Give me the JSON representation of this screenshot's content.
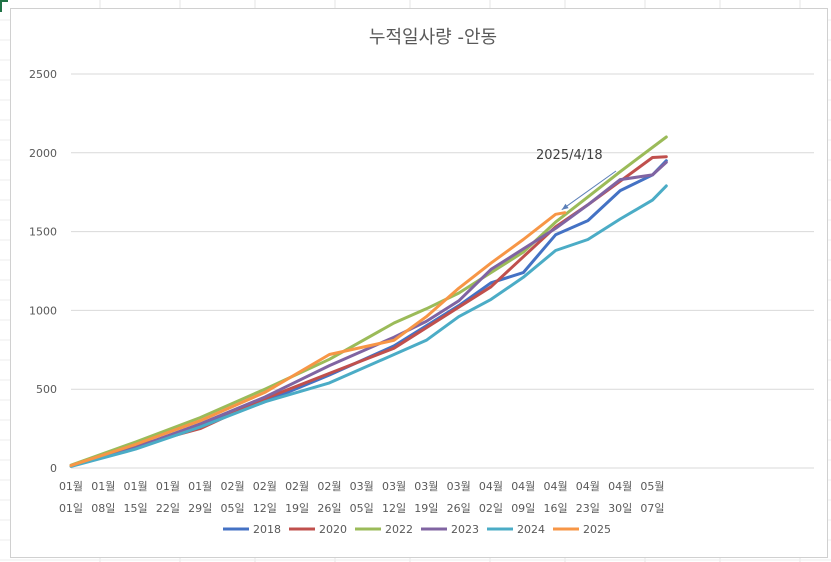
{
  "chart_data": {
    "type": "line",
    "title": "누적일사량 -안동",
    "xlabel": "",
    "ylabel": "",
    "ylim": [
      0,
      2500
    ],
    "yticks": [
      0,
      500,
      1000,
      1500,
      2000,
      2500
    ],
    "grid": true,
    "legend_position": "bottom",
    "x_day_range": [
      1,
      162
    ],
    "xticks": [
      {
        "day": 1,
        "month": "01월",
        "day_label": "01일"
      },
      {
        "day": 8,
        "month": "01월",
        "day_label": "08일"
      },
      {
        "day": 15,
        "month": "01월",
        "day_label": "15일"
      },
      {
        "day": 22,
        "month": "01월",
        "day_label": "22일"
      },
      {
        "day": 29,
        "month": "01월",
        "day_label": "29일"
      },
      {
        "day": 36,
        "month": "02월",
        "day_label": "05일"
      },
      {
        "day": 43,
        "month": "02월",
        "day_label": "12일"
      },
      {
        "day": 50,
        "month": "02월",
        "day_label": "19일"
      },
      {
        "day": 57,
        "month": "02월",
        "day_label": "26일"
      },
      {
        "day": 64,
        "month": "03월",
        "day_label": "05일"
      },
      {
        "day": 71,
        "month": "03월",
        "day_label": "12일"
      },
      {
        "day": 78,
        "month": "03월",
        "day_label": "19일"
      },
      {
        "day": 85,
        "month": "03월",
        "day_label": "26일"
      },
      {
        "day": 92,
        "month": "04월",
        "day_label": "02일"
      },
      {
        "day": 99,
        "month": "04월",
        "day_label": "09일"
      },
      {
        "day": 106,
        "month": "04월",
        "day_label": "16일"
      },
      {
        "day": 113,
        "month": "04월",
        "day_label": "23일"
      },
      {
        "day": 120,
        "month": "04월",
        "day_label": "30일"
      },
      {
        "day": 127,
        "month": "05월",
        "day_label": "07일"
      }
    ],
    "series": [
      {
        "name": "2018",
        "color": "#4472C4",
        "points": [
          [
            1,
            15
          ],
          [
            15,
            125
          ],
          [
            29,
            270
          ],
          [
            43,
            420
          ],
          [
            57,
            590
          ],
          [
            71,
            775
          ],
          [
            85,
            1030
          ],
          [
            92,
            1175
          ],
          [
            99,
            1240
          ],
          [
            106,
            1480
          ],
          [
            113,
            1570
          ],
          [
            120,
            1760
          ],
          [
            127,
            1860
          ],
          [
            130,
            1950
          ]
        ]
      },
      {
        "name": "2020",
        "color": "#C0504D",
        "points": [
          [
            1,
            12
          ],
          [
            15,
            140
          ],
          [
            29,
            250
          ],
          [
            43,
            440
          ],
          [
            57,
            600
          ],
          [
            71,
            760
          ],
          [
            85,
            1020
          ],
          [
            92,
            1150
          ],
          [
            99,
            1340
          ],
          [
            106,
            1530
          ],
          [
            113,
            1670
          ],
          [
            120,
            1820
          ],
          [
            127,
            1970
          ],
          [
            130,
            1975
          ]
        ]
      },
      {
        "name": "2022",
        "color": "#9BBB59",
        "points": [
          [
            1,
            18
          ],
          [
            15,
            165
          ],
          [
            29,
            320
          ],
          [
            43,
            500
          ],
          [
            57,
            690
          ],
          [
            71,
            920
          ],
          [
            78,
            1010
          ],
          [
            85,
            1110
          ],
          [
            92,
            1240
          ],
          [
            99,
            1370
          ],
          [
            106,
            1560
          ],
          [
            113,
            1720
          ],
          [
            120,
            1880
          ],
          [
            130,
            2100
          ]
        ]
      },
      {
        "name": "2023",
        "color": "#8064A2",
        "points": [
          [
            1,
            14
          ],
          [
            15,
            130
          ],
          [
            29,
            280
          ],
          [
            43,
            450
          ],
          [
            57,
            650
          ],
          [
            71,
            830
          ],
          [
            78,
            930
          ],
          [
            85,
            1060
          ],
          [
            92,
            1260
          ],
          [
            99,
            1390
          ],
          [
            106,
            1520
          ],
          [
            113,
            1670
          ],
          [
            120,
            1830
          ],
          [
            127,
            1860
          ],
          [
            130,
            1940
          ]
        ]
      },
      {
        "name": "2024",
        "color": "#4BACC6",
        "points": [
          [
            1,
            10
          ],
          [
            15,
            120
          ],
          [
            29,
            260
          ],
          [
            43,
            420
          ],
          [
            57,
            540
          ],
          [
            71,
            720
          ],
          [
            78,
            810
          ],
          [
            85,
            960
          ],
          [
            92,
            1070
          ],
          [
            99,
            1210
          ],
          [
            106,
            1380
          ],
          [
            113,
            1450
          ],
          [
            120,
            1580
          ],
          [
            127,
            1700
          ],
          [
            130,
            1790
          ]
        ]
      },
      {
        "name": "2025",
        "color": "#F79646",
        "points": [
          [
            1,
            15
          ],
          [
            15,
            150
          ],
          [
            29,
            300
          ],
          [
            43,
            480
          ],
          [
            57,
            720
          ],
          [
            71,
            810
          ],
          [
            78,
            960
          ],
          [
            85,
            1140
          ],
          [
            92,
            1300
          ],
          [
            99,
            1450
          ],
          [
            106,
            1610
          ],
          [
            108,
            1620
          ]
        ]
      }
    ],
    "annotations": [
      {
        "text": "2025/4/18",
        "points_to": {
          "day": 108,
          "value": 1620
        }
      }
    ]
  }
}
